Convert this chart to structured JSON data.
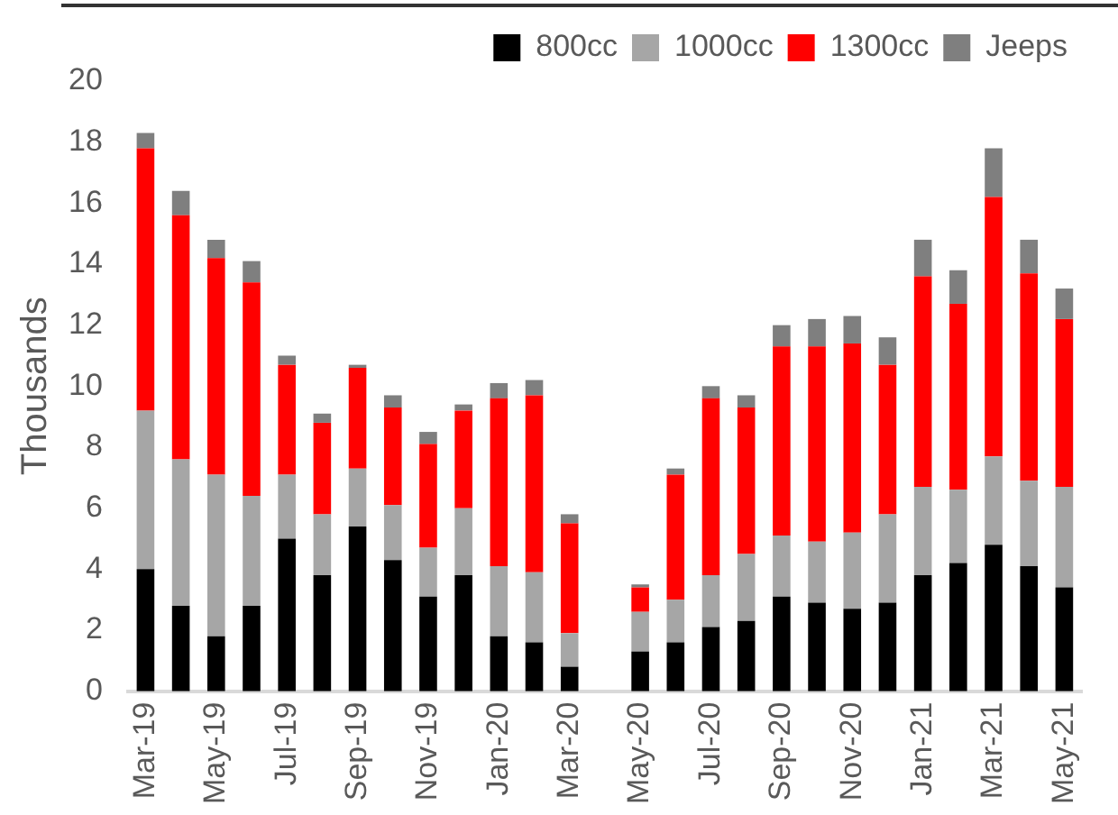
{
  "chart_data": {
    "type": "bar",
    "stacked": true,
    "ylabel": "Thousands",
    "categories": [
      "Mar-19",
      null,
      "May-19",
      null,
      "Jul-19",
      null,
      "Sep-19",
      null,
      "Nov-19",
      null,
      "Jan-20",
      null,
      "Mar-20",
      null,
      "May-20",
      null,
      "Jul-20",
      null,
      "Sep-20",
      null,
      "Nov-20",
      null,
      "Jan-21",
      null,
      "Mar-21",
      null,
      "May-21"
    ],
    "series": [
      {
        "name": "800cc",
        "color": "#000000",
        "values": [
          4.0,
          2.8,
          1.8,
          2.8,
          5.0,
          3.8,
          5.4,
          4.3,
          3.1,
          3.8,
          1.8,
          1.6,
          0.8,
          null,
          1.3,
          1.6,
          2.1,
          2.3,
          3.1,
          2.9,
          2.7,
          2.9,
          3.8,
          4.2,
          4.8,
          4.1,
          3.4
        ]
      },
      {
        "name": "1000cc",
        "color": "#a6a6a6",
        "values": [
          5.2,
          4.8,
          5.3,
          3.6,
          2.1,
          2.0,
          1.9,
          1.8,
          1.6,
          2.2,
          2.3,
          2.3,
          1.1,
          null,
          1.3,
          1.4,
          1.7,
          2.2,
          2.0,
          2.0,
          2.5,
          2.9,
          2.9,
          2.4,
          2.9,
          2.8,
          3.3
        ]
      },
      {
        "name": "1300cc",
        "color": "#ff0000",
        "values": [
          8.6,
          8.0,
          7.1,
          7.0,
          3.6,
          3.0,
          3.3,
          3.2,
          3.4,
          3.2,
          5.5,
          5.8,
          3.6,
          null,
          0.8,
          4.1,
          5.8,
          4.8,
          6.2,
          6.4,
          6.2,
          4.9,
          6.9,
          6.1,
          8.5,
          6.8,
          5.5
        ]
      },
      {
        "name": "Jeeps",
        "color": "#7f7f7f",
        "values": [
          0.5,
          0.8,
          0.6,
          0.7,
          0.3,
          0.3,
          0.1,
          0.4,
          0.4,
          0.2,
          0.5,
          0.5,
          0.3,
          null,
          0.1,
          0.2,
          0.4,
          0.4,
          0.7,
          0.9,
          0.9,
          0.9,
          1.2,
          1.1,
          1.6,
          1.1,
          1.0
        ]
      }
    ],
    "ylim": [
      0,
      20
    ],
    "yticks": [
      0,
      2,
      4,
      6,
      8,
      10,
      12,
      14,
      16,
      18,
      20
    ],
    "grid": false,
    "legend": "top"
  }
}
